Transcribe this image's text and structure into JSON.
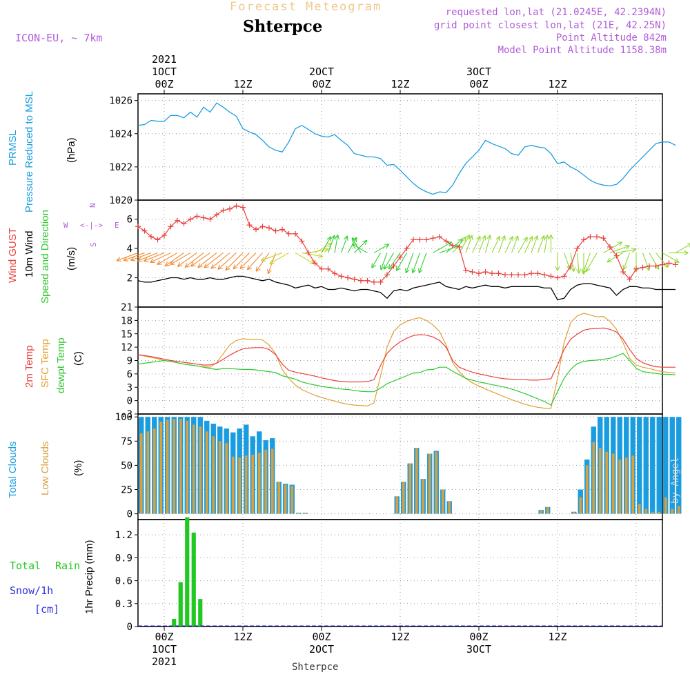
{
  "header": {
    "faint_title": "Forecast Meteogram",
    "location": "Shterpce",
    "model": "ICON-EU, ~ 7km",
    "requested": "requested lon,lat (21.0245E, 42.2394N)",
    "grid_point": "grid point closest lon,lat (21E, 42.25N)",
    "point_alt": "Point Altitude 842m",
    "model_alt": "Model Point Altitude 1158.38m",
    "credit": "by Angel",
    "footer_location": "Shterpce"
  },
  "time_axis": {
    "top_ticks": [
      {
        "label": "00Z",
        "sub": "1OCT",
        "year": "2021"
      },
      {
        "label": "12Z"
      },
      {
        "label": "00Z",
        "sub": "2OCT"
      },
      {
        "label": "12Z"
      },
      {
        "label": "00Z",
        "sub": "3OCT"
      },
      {
        "label": "12Z"
      }
    ],
    "bottom_ticks": [
      {
        "label": "00Z",
        "sub": "1OCT",
        "year": "2021"
      },
      {
        "label": "12Z"
      },
      {
        "label": "00Z",
        "sub": "2OCT"
      },
      {
        "label": "12Z"
      },
      {
        "label": "00Z",
        "sub": "3OCT"
      },
      {
        "label": "12Z"
      }
    ]
  },
  "panel_labels": {
    "pressure": {
      "a": "PRMSL",
      "b": "Pressure Reduced to MSL",
      "unit": "(hPa)"
    },
    "wind": {
      "a": "Wind GUST",
      "b": "10m Wind",
      "c": "Speed and Direction",
      "unit": "(m/s)",
      "rose_n": "N",
      "rose_s": "S",
      "rose_w": "W",
      "rose_e": "E",
      "rose_axis": "<-|->"
    },
    "temp": {
      "a": "2m Temp",
      "b": "SFC Temp",
      "c": "dewpt Temp",
      "unit": "(C)"
    },
    "cloud": {
      "a": "Total Clouds",
      "b": "Low Clouds",
      "unit": "(%)"
    },
    "precip": {
      "a": "Total",
      "a2": "Rain",
      "b": "Snow/1h",
      "c": "[cm]",
      "unit": "1hr Precip (mm)"
    }
  },
  "colors": {
    "pressure": "#1a9de0",
    "gust": "#e8403c",
    "wind10m": "#000000",
    "temp2m": "#e8403c",
    "sfc": "#e0a030",
    "dewpt": "#2ec82e",
    "total_cloud": "#1a9de0",
    "low_cloud": "#d9a040",
    "rain": "#22c822",
    "snow": "#3030e0",
    "purple": "#b05cd8"
  },
  "chart_data": [
    {
      "type": "line",
      "title": "PRMSL Pressure Reduced to MSL",
      "ylabel": "(hPa)",
      "ylim": [
        1020,
        1026.4
      ],
      "yticks": [
        1020,
        1022,
        1024,
        1026
      ],
      "xlabel": "hours from 2021-10-01 00Z",
      "x_start": -4,
      "x_step": 1,
      "series": [
        {
          "name": "PRMSL",
          "values": [
            1024.5,
            1024.55,
            1024.8,
            1024.75,
            1024.75,
            1025.1,
            1025.1,
            1024.95,
            1025.3,
            1025.0,
            1025.6,
            1025.3,
            1025.85,
            1025.6,
            1025.3,
            1025.05,
            1024.3,
            1024.1,
            1023.95,
            1023.6,
            1023.2,
            1023.0,
            1022.9,
            1023.5,
            1024.3,
            1024.5,
            1024.25,
            1024.0,
            1023.85,
            1023.8,
            1023.95,
            1023.6,
            1023.3,
            1022.8,
            1022.7,
            1022.6,
            1022.6,
            1022.5,
            1022.1,
            1022.15,
            1021.8,
            1021.4,
            1021.0,
            1020.7,
            1020.5,
            1020.35,
            1020.5,
            1020.45,
            1020.9,
            1021.6,
            1022.2,
            1022.6,
            1023.0,
            1023.6,
            1023.4,
            1023.25,
            1023.1,
            1022.8,
            1022.7,
            1023.2,
            1023.3,
            1023.2,
            1023.15,
            1022.8,
            1022.2,
            1022.3,
            1022.0,
            1021.8,
            1021.5,
            1021.2,
            1021.0,
            1020.9,
            1020.85,
            1020.95,
            1021.3,
            1021.8,
            1022.2,
            1022.6,
            1023.0,
            1023.4,
            1023.5,
            1023.5,
            1023.3
          ]
        }
      ]
    },
    {
      "type": "line",
      "title": "Wind GUST and 10m Wind Speed and Direction",
      "ylabel": "(m/s)",
      "ylim": [
        0,
        7.3
      ],
      "yticks": [
        2,
        4,
        6
      ],
      "x_start": -4,
      "x_step": 1,
      "series": [
        {
          "name": "Wind GUST",
          "values": [
            5.5,
            5.2,
            4.8,
            4.6,
            4.9,
            5.5,
            5.9,
            5.7,
            6.0,
            6.2,
            6.1,
            6.0,
            6.3,
            6.6,
            6.7,
            6.9,
            6.8,
            5.6,
            5.3,
            5.5,
            5.4,
            5.2,
            5.3,
            5.0,
            5.0,
            4.5,
            3.7,
            3.0,
            2.6,
            2.6,
            2.3,
            2.1,
            2.0,
            1.9,
            1.8,
            1.8,
            1.7,
            1.7,
            2.2,
            2.8,
            3.4,
            4.0,
            4.6,
            4.6,
            4.6,
            4.7,
            4.8,
            4.5,
            4.2,
            4.1,
            2.5,
            2.4,
            2.3,
            2.4,
            2.3,
            2.3,
            2.2,
            2.2,
            2.2,
            2.2,
            2.3,
            2.3,
            2.2,
            2.1,
            2.0,
            2.1,
            2.8,
            4.0,
            4.6,
            4.8,
            4.8,
            4.7,
            4.1,
            3.5,
            2.4,
            1.9,
            2.6,
            2.7,
            2.8,
            2.8,
            2.9,
            3.0,
            2.9
          ]
        },
        {
          "name": "10m Wind",
          "values": [
            1.8,
            1.7,
            1.7,
            1.8,
            1.9,
            2.0,
            2.0,
            1.9,
            2.0,
            1.9,
            1.9,
            2.0,
            1.9,
            1.9,
            2.0,
            2.1,
            2.1,
            2.0,
            1.9,
            1.8,
            1.9,
            1.7,
            1.6,
            1.5,
            1.3,
            1.4,
            1.5,
            1.3,
            1.4,
            1.2,
            1.2,
            1.3,
            1.2,
            1.1,
            1.2,
            1.2,
            1.1,
            1.0,
            0.6,
            1.1,
            1.2,
            1.1,
            1.3,
            1.4,
            1.5,
            1.6,
            1.7,
            1.4,
            1.3,
            1.2,
            1.4,
            1.3,
            1.4,
            1.5,
            1.4,
            1.4,
            1.3,
            1.4,
            1.4,
            1.4,
            1.4,
            1.4,
            1.3,
            1.3,
            0.5,
            0.6,
            1.2,
            1.5,
            1.6,
            1.6,
            1.5,
            1.4,
            1.3,
            0.8,
            1.2,
            1.4,
            1.4,
            1.3,
            1.3,
            1.2,
            1.2,
            1.2,
            1.2
          ]
        }
      ],
      "wind_direction_deg_to": [
        250,
        250,
        250,
        248,
        248,
        245,
        240,
        235,
        240,
        235,
        232,
        235,
        232,
        232,
        230,
        228,
        225,
        225,
        225,
        222,
        215,
        200,
        250,
        240,
        120,
        100,
        80,
        60,
        30,
        20,
        10,
        20,
        30,
        45,
        330,
        300,
        60,
        210,
        200,
        210,
        215,
        210,
        200,
        200,
        200,
        60,
        70,
        50,
        40,
        30,
        20,
        25,
        20,
        15,
        25,
        20,
        25,
        20,
        30,
        25,
        20,
        20,
        10,
        0,
        180,
        160,
        170,
        175,
        180,
        200,
        210,
        60,
        70,
        80,
        240,
        200,
        180,
        160,
        150,
        140,
        120,
        90,
        60
      ]
    },
    {
      "type": "line",
      "title": "2m Temp, SFC Temp, dewpt Temp",
      "ylabel": "(C)",
      "ylim": [
        -3,
        21
      ],
      "yticks": [
        -3,
        0,
        3,
        6,
        9,
        12,
        15,
        18,
        21
      ],
      "x_start": -4,
      "x_step": 1,
      "series": [
        {
          "name": "2m Temp",
          "values": [
            10.3,
            10.1,
            9.9,
            9.6,
            9.3,
            9.0,
            8.8,
            8.6,
            8.4,
            8.2,
            8.0,
            8.0,
            8.4,
            9.3,
            10.2,
            11.0,
            11.6,
            11.8,
            11.9,
            11.9,
            11.5,
            10.3,
            8.2,
            6.8,
            6.4,
            6.1,
            5.8,
            5.5,
            5.1,
            4.8,
            4.5,
            4.3,
            4.2,
            4.2,
            4.2,
            4.3,
            4.7,
            7.9,
            10.6,
            12.1,
            13.2,
            14.0,
            14.6,
            14.8,
            14.7,
            14.3,
            13.5,
            12.0,
            9.0,
            7.5,
            6.9,
            6.4,
            6.0,
            5.7,
            5.4,
            5.1,
            4.9,
            4.8,
            4.7,
            4.7,
            4.6,
            4.6,
            4.8,
            4.9,
            8.0,
            11.5,
            13.8,
            14.9,
            15.8,
            16.1,
            16.2,
            16.3,
            16.0,
            15.4,
            13.8,
            11.5,
            9.5,
            8.5,
            8.0,
            7.6,
            7.5,
            7.5,
            7.5
          ]
        },
        {
          "name": "SFC Temp",
          "values": [
            10.3,
            10.0,
            9.7,
            9.4,
            9.0,
            8.8,
            8.5,
            8.2,
            8.0,
            7.8,
            7.6,
            7.5,
            8.5,
            10.5,
            12.5,
            13.5,
            13.9,
            13.7,
            13.8,
            13.6,
            12.5,
            10.5,
            7.0,
            5.0,
            3.5,
            2.5,
            1.8,
            1.2,
            0.7,
            0.3,
            -0.1,
            -0.5,
            -0.8,
            -1.0,
            -1.1,
            -1.2,
            -0.5,
            5.5,
            12.0,
            15.5,
            17.0,
            17.8,
            18.3,
            18.6,
            18.0,
            17.0,
            15.5,
            12.5,
            8.5,
            6.5,
            5.0,
            4.0,
            3.3,
            2.6,
            2.0,
            1.4,
            0.8,
            0.2,
            -0.3,
            -0.8,
            -1.2,
            -1.5,
            -1.7,
            -1.7,
            5.0,
            13.0,
            17.5,
            19.0,
            19.6,
            19.2,
            18.8,
            18.9,
            17.8,
            16.0,
            13.0,
            9.5,
            8.0,
            7.5,
            7.2,
            6.8,
            6.5,
            6.3,
            6.2
          ]
        },
        {
          "name": "dewpt Temp",
          "values": [
            8.2,
            8.4,
            8.6,
            8.8,
            9.0,
            8.8,
            8.5,
            8.2,
            8.0,
            7.8,
            7.5,
            7.2,
            7.0,
            7.2,
            7.2,
            7.1,
            7.0,
            7.0,
            6.9,
            6.7,
            6.5,
            6.3,
            5.6,
            5.2,
            4.8,
            4.2,
            3.8,
            3.5,
            3.2,
            3.0,
            2.8,
            2.6,
            2.5,
            2.3,
            2.1,
            2.0,
            2.0,
            2.8,
            3.8,
            4.4,
            5.0,
            5.6,
            6.2,
            6.3,
            6.9,
            7.0,
            7.5,
            7.5,
            6.6,
            5.8,
            5.0,
            4.6,
            4.2,
            3.9,
            3.6,
            3.3,
            3.0,
            2.6,
            2.1,
            1.6,
            1.0,
            0.4,
            -0.2,
            -1.0,
            2.0,
            5.0,
            7.0,
            8.3,
            8.8,
            9.0,
            9.1,
            9.3,
            9.5,
            10.0,
            10.6,
            9.0,
            7.3,
            6.5,
            6.3,
            6.1,
            5.9,
            5.9,
            5.8
          ]
        }
      ]
    },
    {
      "type": "bar",
      "title": "Total Clouds, Low Clouds",
      "ylabel": "(%)",
      "ylim": [
        -6,
        103
      ],
      "yticks": [
        0,
        25,
        50,
        75,
        100
      ],
      "x_start": -4,
      "x_step": 1,
      "series": [
        {
          "name": "Total Clouds",
          "values": [
            100,
            100,
            100,
            100,
            100,
            100,
            100,
            100,
            100,
            100,
            96,
            93,
            90,
            88,
            84,
            88,
            92,
            80,
            85,
            76,
            78,
            33,
            31,
            30,
            1,
            1,
            0,
            0,
            0,
            0,
            0,
            0,
            0,
            0,
            0,
            0,
            0,
            0,
            0,
            18,
            33,
            52,
            68,
            36,
            62,
            65,
            25,
            13,
            0,
            0,
            0,
            0,
            0,
            0,
            0,
            0,
            0,
            0,
            0,
            0,
            0,
            4,
            7,
            0,
            0,
            0,
            2,
            25,
            56,
            90,
            100,
            100,
            100,
            100,
            100,
            100,
            100,
            100,
            100,
            100,
            100,
            100,
            100
          ]
        },
        {
          "name": "Low Clouds",
          "values": [
            83,
            85,
            88,
            95,
            97,
            98,
            98,
            96,
            92,
            90,
            85,
            80,
            75,
            73,
            59,
            58,
            60,
            61,
            63,
            66,
            67,
            33,
            30,
            29,
            1,
            1,
            0,
            0,
            0,
            0,
            0,
            0,
            0,
            0,
            0,
            0,
            0,
            0,
            0,
            18,
            33,
            52,
            68,
            36,
            62,
            64,
            25,
            13,
            0,
            0,
            0,
            0,
            0,
            0,
            0,
            0,
            0,
            0,
            0,
            0,
            0,
            4,
            7,
            0,
            0,
            0,
            2,
            17,
            50,
            74,
            68,
            64,
            62,
            56,
            58,
            60,
            10,
            5,
            2,
            2,
            17,
            5,
            8
          ]
        }
      ]
    },
    {
      "type": "bar",
      "title": "1hr Precip",
      "ylabel": "1hr Precip (mm)",
      "ylim": [
        0,
        1.4
      ],
      "yticks": [
        0,
        0.3,
        0.6,
        0.9,
        1.2
      ],
      "ytick_labels": [
        "0",
        "0.3",
        "0.6",
        "0.9",
        "1.2"
      ],
      "x_start": -4,
      "x_step": 1,
      "series": [
        {
          "name": "Total Rain",
          "values": [
            0,
            0,
            0,
            0,
            0,
            0.1,
            0.58,
            1.43,
            1.23,
            0.36,
            0,
            0,
            0,
            0,
            0,
            0,
            0,
            0,
            0,
            0,
            0,
            0,
            0,
            0,
            0,
            0,
            0,
            0,
            0,
            0,
            0,
            0,
            0,
            0,
            0,
            0,
            0,
            0,
            0,
            0,
            0,
            0,
            0,
            0,
            0,
            0,
            0,
            0,
            0,
            0,
            0,
            0,
            0,
            0,
            0,
            0,
            0,
            0,
            0,
            0,
            0,
            0,
            0,
            0,
            0,
            0,
            0,
            0,
            0,
            0,
            0,
            0,
            0,
            0,
            0,
            0,
            0,
            0,
            0,
            0,
            0,
            0,
            0
          ]
        },
        {
          "name": "Snow/1h",
          "values": [
            0,
            0,
            0,
            0,
            0,
            0,
            0,
            0,
            0,
            0,
            0,
            0,
            0,
            0,
            0,
            0,
            0,
            0,
            0,
            0,
            0,
            0,
            0,
            0,
            0,
            0,
            0,
            0,
            0,
            0,
            0,
            0,
            0,
            0,
            0,
            0,
            0,
            0,
            0,
            0,
            0,
            0,
            0,
            0,
            0,
            0,
            0,
            0,
            0,
            0,
            0,
            0,
            0,
            0,
            0,
            0,
            0,
            0,
            0,
            0,
            0,
            0,
            0,
            0,
            0,
            0,
            0,
            0,
            0,
            0,
            0,
            0,
            0,
            0,
            0,
            0,
            0,
            0,
            0,
            0,
            0,
            0,
            0
          ]
        }
      ]
    }
  ]
}
